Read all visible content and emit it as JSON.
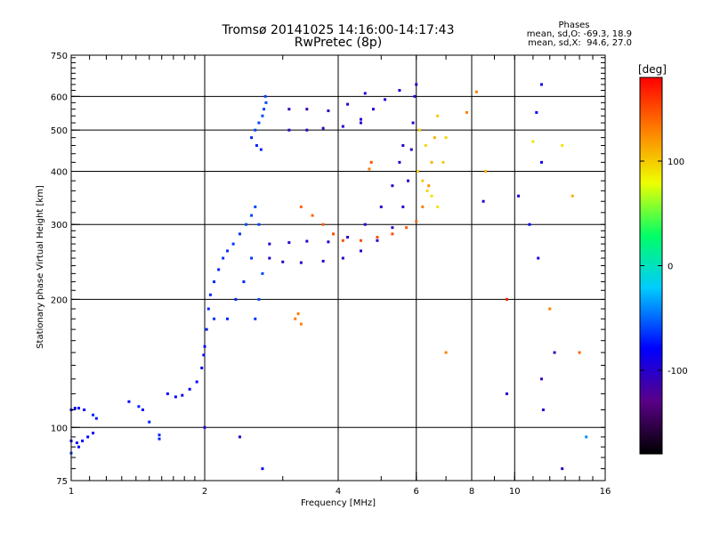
{
  "header": {
    "title_line1": "Tromsø 20141025 14:16:00-14:17:43",
    "title_line2": "RwPretec (8p)",
    "phases_title": "Phases",
    "stat_o": "mean, sd,O: -69.3, 18.9",
    "stat_x": "mean, sd,X:  94.6, 27.0"
  },
  "chart_data": {
    "type": "scatter",
    "title": "Tromsø 20141025 14:16:00-14:17:43",
    "subtitle": "RwPretec (8p)",
    "xlabel": "Frequency [MHz]",
    "ylabel": "Stationary phase Virtual Height [km]",
    "x_scale": "log",
    "y_scale": "log",
    "xlim": [
      1,
      16
    ],
    "ylim": [
      75,
      750
    ],
    "x_ticks": [
      1,
      2,
      4,
      6,
      8,
      10,
      16
    ],
    "x_tick_labels": [
      "1",
      "2",
      "4",
      "6",
      "8",
      "10",
      "16"
    ],
    "y_ticks": [
      75,
      100,
      200,
      300,
      400,
      500,
      600,
      750
    ],
    "y_tick_labels": [
      "75",
      "100",
      "200",
      "300",
      "400",
      "500",
      "600",
      "750"
    ],
    "grid": true,
    "colorbar": {
      "label": "[deg]",
      "range": [
        -180,
        180
      ],
      "ticks": [
        100,
        0,
        -100
      ],
      "tick_labels": [
        "100",
        "0",
        "-100"
      ],
      "colors": [
        "#000000",
        "#5a0087",
        "#0000ff",
        "#00ccff",
        "#00ff66",
        "#eeff00",
        "#ff7f00",
        "#ff0000"
      ]
    },
    "series": [
      {
        "values": [
          [
            1.0,
            110,
            -80
          ],
          [
            1.02,
            111,
            -80
          ],
          [
            1.04,
            111,
            -80
          ],
          [
            1.07,
            110,
            -80
          ],
          [
            1.12,
            107,
            -70
          ],
          [
            1.14,
            105,
            -72
          ],
          [
            1.0,
            93,
            -80
          ],
          [
            1.03,
            92,
            -80
          ],
          [
            1.06,
            93,
            -80
          ],
          [
            1.09,
            95,
            -80
          ],
          [
            1.12,
            97,
            -78
          ],
          [
            1.04,
            90,
            -80
          ],
          [
            1.0,
            87,
            -60
          ]
        ]
      },
      {
        "values": [
          [
            1.35,
            115,
            -80
          ],
          [
            1.42,
            112,
            -70
          ],
          [
            1.45,
            110,
            -80
          ],
          [
            1.5,
            103,
            -70
          ],
          [
            1.58,
            96,
            -70
          ],
          [
            1.58,
            94,
            -70
          ],
          [
            1.65,
            120,
            -80
          ],
          [
            1.72,
            118,
            -80
          ],
          [
            1.78,
            119,
            -80
          ],
          [
            1.85,
            123,
            -80
          ],
          [
            1.92,
            128,
            -80
          ],
          [
            1.97,
            138,
            -80
          ],
          [
            1.99,
            148,
            -80
          ]
        ]
      },
      {
        "values": [
          [
            2.0,
            155,
            -75
          ],
          [
            2.02,
            170,
            -70
          ],
          [
            2.04,
            190,
            -70
          ],
          [
            2.06,
            205,
            -70
          ],
          [
            2.1,
            220,
            -70
          ],
          [
            2.15,
            235,
            -70
          ],
          [
            2.2,
            250,
            -65
          ],
          [
            2.25,
            260,
            -65
          ],
          [
            2.32,
            270,
            -65
          ],
          [
            2.4,
            285,
            -65
          ],
          [
            2.48,
            300,
            -60
          ],
          [
            2.55,
            315,
            -60
          ],
          [
            2.6,
            330,
            -60
          ],
          [
            2.65,
            300,
            -60
          ],
          [
            2.55,
            250,
            -65
          ],
          [
            2.45,
            220,
            -70
          ],
          [
            2.35,
            200,
            -70
          ],
          [
            2.25,
            180,
            -70
          ],
          [
            2.1,
            180,
            -65
          ],
          [
            2.65,
            200,
            -60
          ],
          [
            2.7,
            230,
            -60
          ],
          [
            2.6,
            180,
            -65
          ]
        ]
      },
      {
        "values": [
          [
            2.55,
            480,
            -70
          ],
          [
            2.6,
            500,
            -60
          ],
          [
            2.65,
            520,
            -60
          ],
          [
            2.7,
            540,
            -60
          ],
          [
            2.72,
            560,
            -60
          ],
          [
            2.75,
            580,
            -60
          ],
          [
            2.62,
            460,
            -70
          ],
          [
            2.68,
            450,
            -70
          ],
          [
            2.74,
            600,
            -60
          ]
        ]
      },
      {
        "values": [
          [
            2.8,
            250,
            -100
          ],
          [
            3.0,
            245,
            -100
          ],
          [
            3.3,
            244,
            -100
          ],
          [
            3.7,
            246,
            -100
          ],
          [
            4.1,
            250,
            -100
          ],
          [
            4.5,
            260,
            -100
          ],
          [
            4.9,
            275,
            -100
          ],
          [
            5.3,
            295,
            -100
          ],
          [
            5.6,
            330,
            -100
          ],
          [
            5.75,
            380,
            -100
          ],
          [
            5.85,
            450,
            -100
          ],
          [
            5.9,
            520,
            -100
          ],
          [
            5.95,
            600,
            -100
          ],
          [
            6.0,
            640,
            -100
          ]
        ]
      },
      {
        "values": [
          [
            2.8,
            270,
            -100
          ],
          [
            3.1,
            272,
            -100
          ],
          [
            3.4,
            274,
            -100
          ],
          [
            3.8,
            273,
            -100
          ],
          [
            4.2,
            280,
            -100
          ],
          [
            4.6,
            300,
            -100
          ],
          [
            5.0,
            330,
            -100
          ],
          [
            5.3,
            370,
            -100
          ],
          [
            5.5,
            420,
            -100
          ],
          [
            5.6,
            460,
            -100
          ]
        ]
      },
      {
        "values": [
          [
            3.1,
            500,
            -105
          ],
          [
            3.4,
            500,
            -105
          ],
          [
            3.7,
            505,
            -105
          ],
          [
            4.1,
            510,
            -100
          ],
          [
            4.5,
            530,
            -95
          ],
          [
            4.8,
            560,
            -95
          ],
          [
            5.1,
            590,
            -95
          ],
          [
            5.5,
            620,
            -95
          ],
          [
            3.1,
            560,
            -110
          ],
          [
            3.4,
            560,
            -110
          ],
          [
            3.8,
            555,
            -105
          ],
          [
            4.2,
            575,
            -100
          ],
          [
            4.6,
            610,
            -95
          ]
        ]
      },
      {
        "values": [
          [
            3.3,
            330,
            140
          ],
          [
            3.5,
            315,
            140
          ],
          [
            3.7,
            300,
            145
          ],
          [
            3.9,
            285,
            150
          ],
          [
            4.1,
            275,
            150
          ],
          [
            4.5,
            275,
            150
          ],
          [
            4.9,
            280,
            150
          ],
          [
            5.3,
            285,
            150
          ],
          [
            5.7,
            295,
            145
          ],
          [
            6.0,
            305,
            140
          ],
          [
            6.2,
            330,
            130
          ],
          [
            6.4,
            370,
            120
          ],
          [
            6.5,
            420,
            110
          ],
          [
            6.6,
            480,
            110
          ],
          [
            6.7,
            540,
            100
          ]
        ]
      },
      {
        "values": [
          [
            6.05,
            400,
            100
          ],
          [
            6.2,
            380,
            100
          ],
          [
            6.35,
            360,
            95
          ],
          [
            6.5,
            350,
            90
          ],
          [
            6.7,
            330,
            90
          ],
          [
            6.9,
            420,
            100
          ],
          [
            7.0,
            480,
            95
          ],
          [
            6.3,
            460,
            95
          ],
          [
            6.1,
            500,
            100
          ]
        ]
      },
      {
        "values": [
          [
            3.2,
            180,
            130
          ],
          [
            3.3,
            175,
            130
          ],
          [
            3.25,
            185,
            130
          ],
          [
            4.7,
            405,
            130
          ],
          [
            4.75,
            420,
            150
          ],
          [
            7.0,
            150,
            130
          ],
          [
            7.8,
            550,
            130
          ],
          [
            8.2,
            615,
            130
          ],
          [
            9.6,
            200,
            170
          ],
          [
            8.6,
            400,
            110
          ],
          [
            11.0,
            470,
            90
          ],
          [
            12.8,
            460,
            90
          ],
          [
            13.5,
            350,
            110
          ],
          [
            12.0,
            190,
            130
          ],
          [
            14.5,
            95,
            -40
          ],
          [
            14.0,
            150,
            140
          ]
        ]
      },
      {
        "values": [
          [
            11.5,
            640,
            -90
          ],
          [
            11.5,
            130,
            -110
          ],
          [
            11.6,
            110,
            -100
          ],
          [
            10.2,
            350,
            -90
          ],
          [
            11.5,
            420,
            -90
          ],
          [
            12.3,
            150,
            -110
          ],
          [
            11.2,
            550,
            -80
          ],
          [
            9.6,
            120,
            -100
          ],
          [
            2.7,
            80,
            -80
          ],
          [
            2.4,
            95,
            -100
          ],
          [
            2.0,
            100,
            -100
          ],
          [
            4.5,
            520,
            -100
          ],
          [
            8.5,
            340,
            -100
          ],
          [
            10.8,
            300,
            -80
          ],
          [
            11.3,
            250,
            -90
          ],
          [
            12.8,
            80,
            -100
          ]
        ]
      }
    ]
  }
}
